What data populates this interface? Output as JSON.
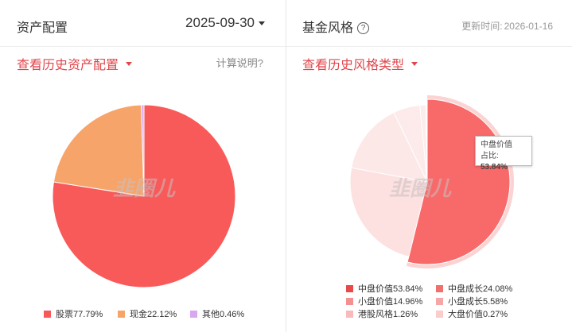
{
  "left": {
    "title": "资产配置",
    "date": "2025-09-30",
    "history_link": "查看历史资产配置",
    "calc_link": "计算说明?",
    "watermark": "韭圈儿"
  },
  "right": {
    "title": "基金风格",
    "update_label": "更新时间:",
    "update_date": "2026-01-16",
    "history_link": "查看历史风格类型",
    "tooltip_name": "中盘价值",
    "tooltip_label": "占比:",
    "tooltip_value": "53.84%",
    "watermark": "韭圈儿"
  },
  "chart_data": [
    {
      "type": "pie",
      "series": [
        {
          "name": "股票",
          "value": 77.79,
          "label": "股票77.79%",
          "color": "#f85a5a"
        },
        {
          "name": "现金",
          "value": 22.12,
          "label": "现金22.12%",
          "color": "#f7a46b"
        },
        {
          "name": "其他",
          "value": 0.46,
          "label": "其他0.46%",
          "color": "#d9a6f0"
        }
      ]
    },
    {
      "type": "pie",
      "series": [
        {
          "name": "中盘价值",
          "value": 53.84,
          "label": "中盘价值53.84%",
          "color": "#f86a6a"
        },
        {
          "name": "中盘成长",
          "value": 24.08,
          "label": "中盘成长24.08%",
          "color": "#fde0e0"
        },
        {
          "name": "小盘价值",
          "value": 14.96,
          "label": "小盘价值14.96%",
          "color": "#fde8e8"
        },
        {
          "name": "小盘成长",
          "value": 5.58,
          "label": "小盘成长5.58%",
          "color": "#fdeaea"
        },
        {
          "name": "港股风格",
          "value": 1.26,
          "label": "港股风格1.26%",
          "color": "#fcecec"
        },
        {
          "name": "大盘价值",
          "value": 0.27,
          "label": "大盘价值0.27%",
          "color": "#fff0f0"
        }
      ],
      "legend_colors": [
        "#e84a4a",
        "#f07070",
        "#f49090",
        "#f6a6a6",
        "#f8baba",
        "#facccc"
      ]
    }
  ]
}
